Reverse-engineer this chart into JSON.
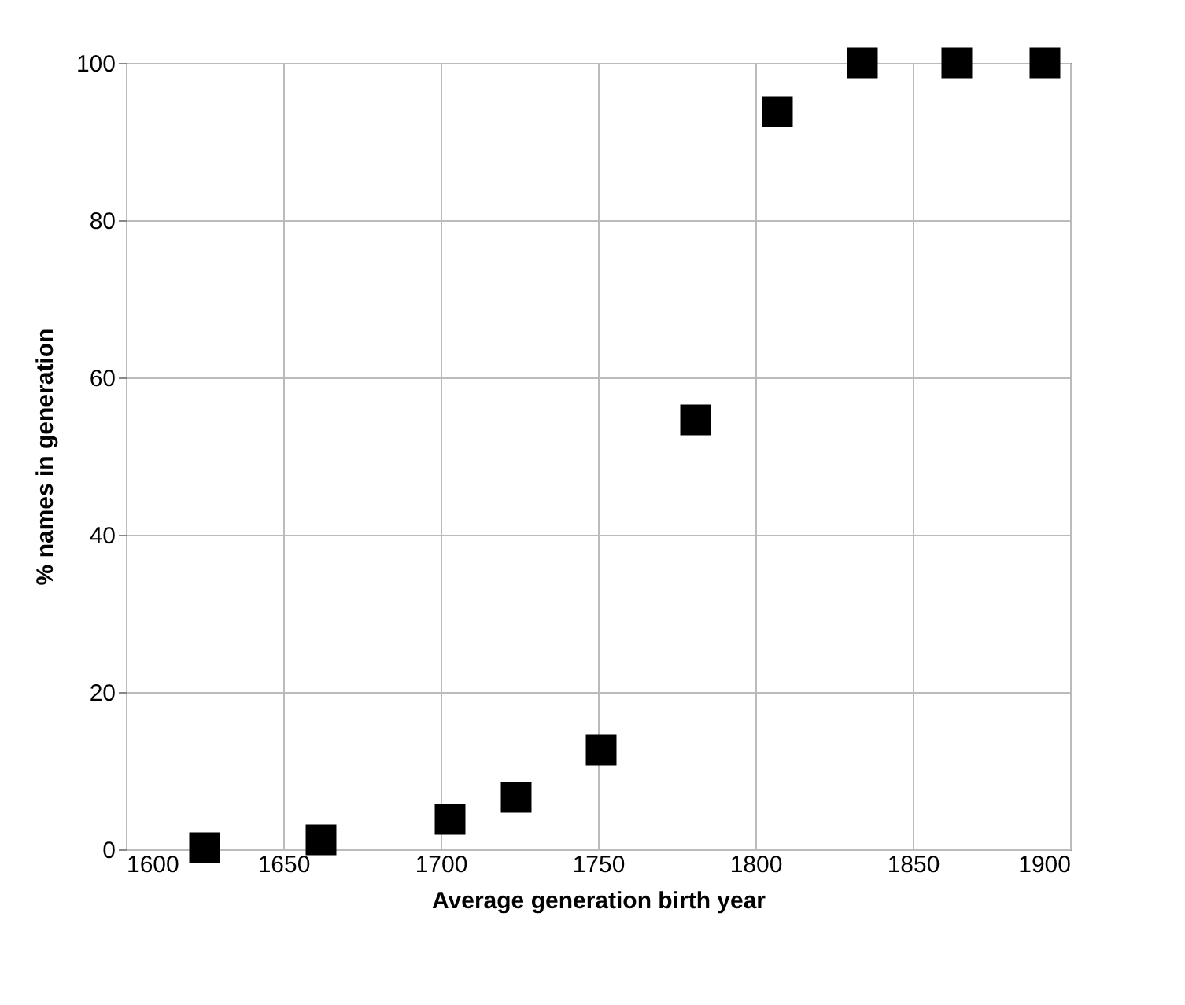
{
  "chart_data": {
    "type": "scatter",
    "xlabel": "Average generation birth year",
    "ylabel": "% names in generation",
    "x": [
      1625,
      1662,
      1703,
      1724,
      1751,
      1781,
      1807,
      1834,
      1864,
      1892
    ],
    "series": [
      {
        "color": "#000000",
        "values": [
          0.2,
          1.2,
          3.8,
          6.6,
          12.6,
          54.6,
          93.8,
          100,
          100,
          100
        ]
      }
    ],
    "xlim": [
      1600,
      1900
    ],
    "xticks": [
      1600,
      1650,
      1700,
      1750,
      1800,
      1850,
      1900
    ],
    "ylim": [
      0,
      100
    ],
    "yticks": [
      0,
      20,
      40,
      60,
      80,
      100
    ],
    "grid": true,
    "marker": "square"
  }
}
